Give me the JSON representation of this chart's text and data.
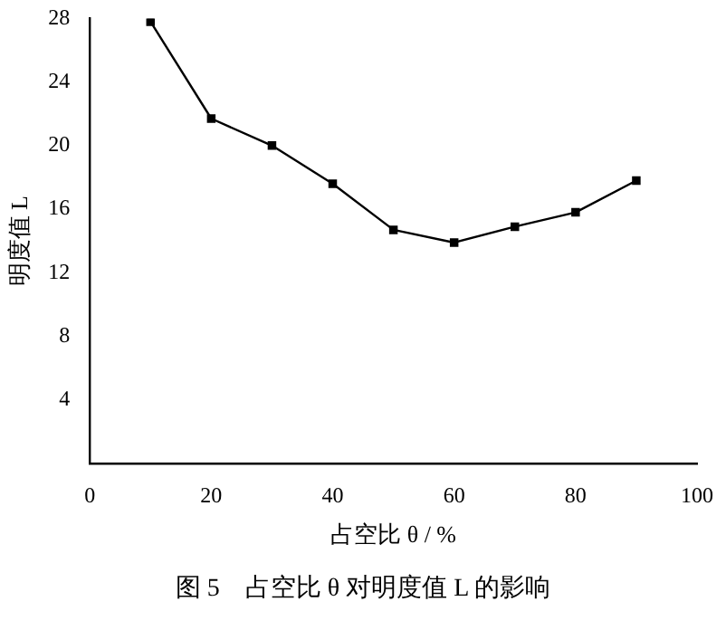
{
  "chart_data": {
    "type": "line",
    "title": "图 5　占空比 θ 对明度值 L 的影响",
    "xlabel": "占空比 θ / %",
    "ylabel": "明度值 L",
    "x": [
      10,
      20,
      30,
      40,
      50,
      60,
      70,
      80,
      90
    ],
    "series": [
      {
        "color": "#000000",
        "values": [
          27.8,
          21.7,
          20.0,
          17.6,
          14.7,
          13.9,
          14.9,
          15.8,
          17.8
        ]
      }
    ],
    "xlim": [
      0,
      100
    ],
    "xticks": [
      0,
      20,
      40,
      60,
      80,
      100
    ],
    "ylim": [
      0,
      28
    ],
    "yticks": [
      4,
      8,
      12,
      16,
      20,
      24,
      28
    ],
    "grid": false,
    "legend": false,
    "marker": "square",
    "line_style": "solid"
  }
}
